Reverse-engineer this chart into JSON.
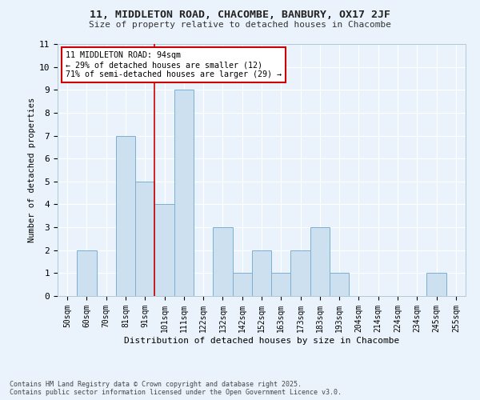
{
  "title": "11, MIDDLETON ROAD, CHACOMBE, BANBURY, OX17 2JF",
  "subtitle": "Size of property relative to detached houses in Chacombe",
  "xlabel": "Distribution of detached houses by size in Chacombe",
  "ylabel": "Number of detached properties",
  "footer_line1": "Contains HM Land Registry data © Crown copyright and database right 2025.",
  "footer_line2": "Contains public sector information licensed under the Open Government Licence v3.0.",
  "categories": [
    "50sqm",
    "60sqm",
    "70sqm",
    "81sqm",
    "91sqm",
    "101sqm",
    "111sqm",
    "122sqm",
    "132sqm",
    "142sqm",
    "152sqm",
    "163sqm",
    "173sqm",
    "183sqm",
    "193sqm",
    "204sqm",
    "214sqm",
    "224sqm",
    "234sqm",
    "245sqm",
    "255sqm"
  ],
  "values": [
    0,
    2,
    0,
    7,
    5,
    4,
    9,
    0,
    3,
    1,
    2,
    1,
    2,
    3,
    1,
    0,
    0,
    0,
    0,
    1,
    0
  ],
  "bar_color": "#cce0f0",
  "bar_edge_color": "#7aafd4",
  "background_color": "#eaf3fb",
  "grid_color": "#ffffff",
  "red_line_x": 4.5,
  "annotation_text": "11 MIDDLETON ROAD: 94sqm\n← 29% of detached houses are smaller (12)\n71% of semi-detached houses are larger (29) →",
  "annotation_box_color": "#ffffff",
  "annotation_box_edge": "#cc0000",
  "ylim": [
    0,
    11
  ],
  "yticks": [
    0,
    1,
    2,
    3,
    4,
    5,
    6,
    7,
    8,
    9,
    10,
    11
  ],
  "figwidth": 6.0,
  "figheight": 5.0,
  "dpi": 100
}
